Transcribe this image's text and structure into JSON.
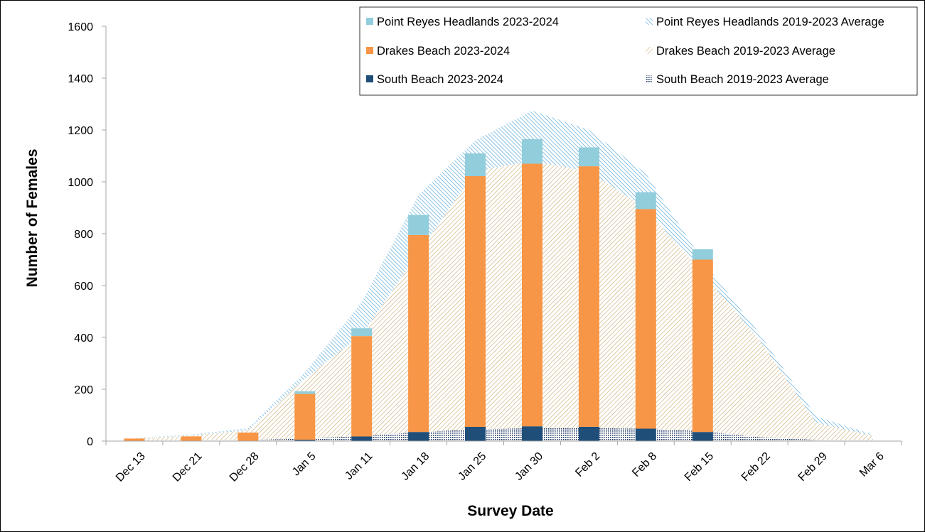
{
  "chart_data": {
    "type": "bar",
    "title": "",
    "xlabel": "Survey Date",
    "ylabel": "Number of Females",
    "ylim": [
      0,
      1600
    ],
    "yticks": [
      0,
      200,
      400,
      600,
      800,
      1000,
      1200,
      1400,
      1600
    ],
    "grid": false,
    "legend_position": "top-right",
    "categories": [
      "Dec 13",
      "Dec 21",
      "Dec 28",
      "Jan 5",
      "Jan 11",
      "Jan 18",
      "Jan 25",
      "Jan 30",
      "Feb 2",
      "Feb 8",
      "Feb 15",
      "Feb 22",
      "Feb 29",
      "Mar 6"
    ],
    "stacked_bars": [
      {
        "name": "South Beach 2023-2024",
        "color": "#1f4e79",
        "values": [
          0,
          0,
          0,
          5,
          18,
          35,
          55,
          57,
          55,
          48,
          35,
          null,
          null,
          null
        ]
      },
      {
        "name": "Drakes Beach 2023-2024",
        "color": "#f79646",
        "values": [
          10,
          18,
          33,
          177,
          387,
          760,
          967,
          1013,
          1005,
          847,
          665,
          null,
          null,
          null
        ]
      },
      {
        "name": "Point Reyes Headlands 2023-2024",
        "color": "#92cddc",
        "values": [
          0,
          0,
          0,
          10,
          30,
          77,
          88,
          95,
          73,
          65,
          40,
          null,
          null,
          null
        ]
      }
    ],
    "stacked_areas": [
      {
        "name": "South Beach 2019-2023 Average",
        "color": "#1f3864",
        "values": [
          2,
          3,
          4,
          10,
          20,
          35,
          45,
          50,
          50,
          48,
          38,
          15,
          5,
          2
        ]
      },
      {
        "name": "Drakes Beach 2019-2023 Average",
        "color": "#c9a66b",
        "values": [
          8,
          18,
          38,
          230,
          390,
          690,
          995,
          1030,
          990,
          850,
          610,
          375,
          65,
          18
        ]
      },
      {
        "name": "Point Reyes Headlands 2019-2023 Average",
        "color": "#4aa3d8",
        "values": [
          2,
          4,
          8,
          25,
          125,
          225,
          120,
          195,
          160,
          135,
          48,
          25,
          25,
          5
        ]
      }
    ],
    "legend": [
      {
        "label": "Point Reyes Headlands 2023-2024",
        "kind": "solid",
        "color": "#92cddc"
      },
      {
        "label": "Point Reyes Headlands 2019-2023 Average",
        "kind": "hatch-blue",
        "color": "#4aa3d8"
      },
      {
        "label": "Drakes Beach 2023-2024",
        "kind": "solid",
        "color": "#f79646"
      },
      {
        "label": "Drakes Beach 2019-2023 Average",
        "kind": "hatch-tan",
        "color": "#c9a66b"
      },
      {
        "label": "South Beach 2023-2024",
        "kind": "solid",
        "color": "#1f4e79"
      },
      {
        "label": "South Beach 2019-2023 Average",
        "kind": "dots",
        "color": "#1f3864"
      }
    ]
  }
}
